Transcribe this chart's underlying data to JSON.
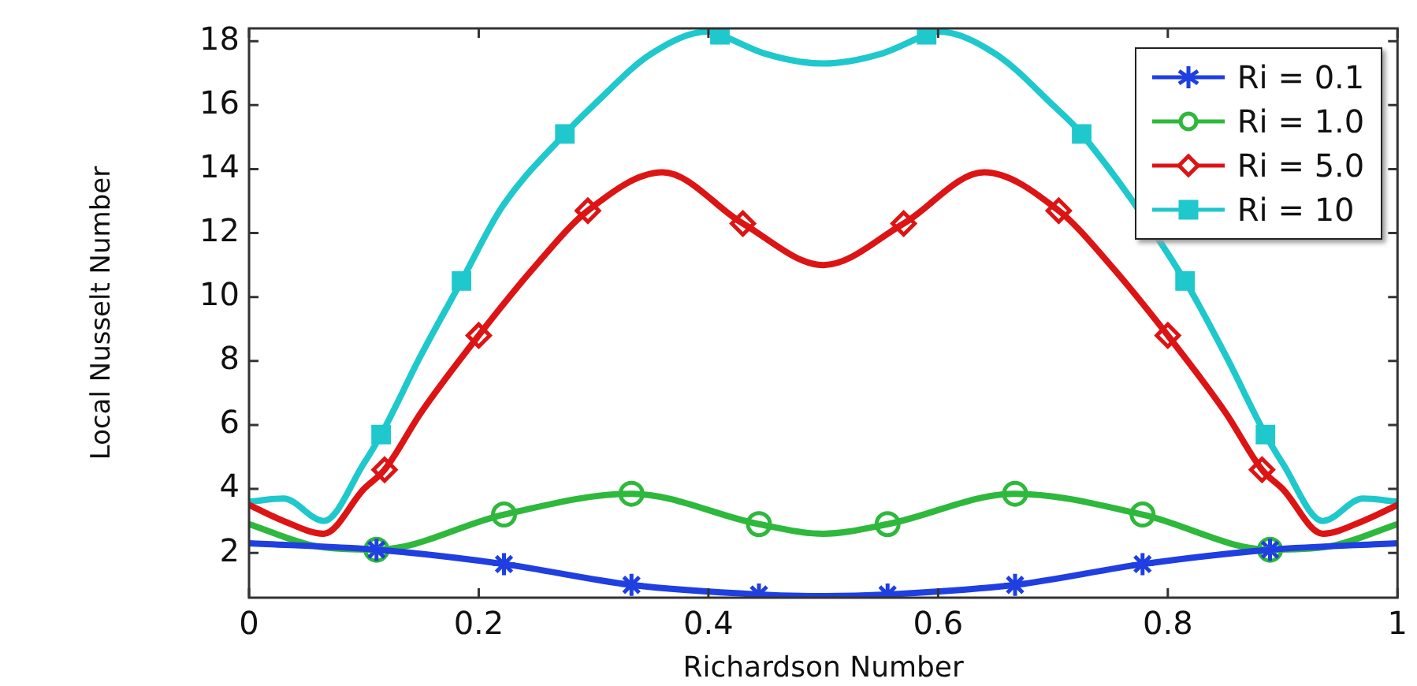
{
  "chart_data": {
    "type": "line",
    "xlabel": "Richardson Number",
    "ylabel": "Local Nusselt Number",
    "xlim": [
      0,
      1
    ],
    "ylim": [
      0.6,
      18.4
    ],
    "xticks": [
      0,
      0.2,
      0.4,
      0.6,
      0.8,
      1
    ],
    "yticks": [
      2,
      4,
      6,
      8,
      10,
      12,
      14,
      16,
      18
    ],
    "grid": false,
    "legend": "top right",
    "series": [
      {
        "name": "Ri = 0.1",
        "color": "#1f3fe0",
        "x": [
          0,
          0.111,
          0.222,
          0.333,
          0.444,
          0.5,
          0.556,
          0.667,
          0.778,
          0.889,
          1
        ],
        "values": [
          2.3,
          2.1,
          1.65,
          1.0,
          0.7,
          0.65,
          0.7,
          1.0,
          1.65,
          2.1,
          2.3
        ]
      },
      {
        "name": "Ri = 1.0",
        "color": "#2eb83c",
        "x": [
          0,
          0.06,
          0.111,
          0.222,
          0.333,
          0.444,
          0.5,
          0.556,
          0.667,
          0.778,
          0.889,
          0.94,
          1
        ],
        "values": [
          2.9,
          2.2,
          2.1,
          3.2,
          3.85,
          2.9,
          2.6,
          2.9,
          3.85,
          3.2,
          2.1,
          2.2,
          2.9
        ]
      },
      {
        "name": "Ri = 5.0",
        "color": "#dd1414",
        "x": [
          0,
          0.03,
          0.065,
          0.1,
          0.118,
          0.15,
          0.2,
          0.25,
          0.295,
          0.36,
          0.43,
          0.5,
          0.57,
          0.64,
          0.705,
          0.75,
          0.8,
          0.85,
          0.882,
          0.9,
          0.935,
          0.97,
          1
        ],
        "values": [
          3.5,
          3.0,
          2.6,
          4.0,
          4.6,
          6.4,
          8.8,
          11.0,
          12.7,
          13.9,
          12.3,
          11.0,
          12.3,
          13.9,
          12.7,
          11.0,
          8.8,
          6.4,
          4.6,
          4.0,
          2.6,
          3.0,
          3.5
        ]
      },
      {
        "name": "Ri = 10",
        "color": "#1ec8cc",
        "x": [
          0,
          0.03,
          0.065,
          0.1,
          0.115,
          0.15,
          0.185,
          0.22,
          0.275,
          0.3,
          0.35,
          0.4,
          0.41,
          0.45,
          0.5,
          0.55,
          0.59,
          0.6,
          0.65,
          0.7,
          0.725,
          0.78,
          0.815,
          0.85,
          0.885,
          0.9,
          0.935,
          0.97,
          1
        ],
        "values": [
          3.6,
          3.7,
          3.0,
          4.8,
          5.7,
          8.2,
          10.5,
          12.8,
          15.1,
          16.0,
          17.6,
          18.3,
          18.2,
          17.6,
          17.3,
          17.6,
          18.2,
          18.3,
          17.6,
          16.0,
          15.1,
          null,
          10.5,
          8.2,
          5.7,
          4.8,
          3.0,
          3.7,
          3.6
        ]
      },
      {
        "type": "scatter",
        "color": "#1f3fe0",
        "marker": "cross",
        "x": [
          0.111,
          0.222,
          0.333,
          0.444,
          0.556,
          0.667,
          0.778,
          0.889
        ],
        "values": [
          2.1,
          1.65,
          1.0,
          0.7,
          0.7,
          1.0,
          1.65,
          2.1
        ]
      },
      {
        "type": "scatter",
        "color": "#2eb83c",
        "marker": "circle",
        "x": [
          0.111,
          0.222,
          0.333,
          0.444,
          0.556,
          0.667,
          0.778,
          0.889
        ],
        "values": [
          2.1,
          3.2,
          3.85,
          2.9,
          2.9,
          3.85,
          3.2,
          2.1
        ]
      },
      {
        "type": "scatter",
        "color": "#dd1414",
        "marker": "diamond",
        "x": [
          0.118,
          0.2,
          0.295,
          0.43,
          0.57,
          0.705,
          0.8,
          0.882
        ],
        "values": [
          4.6,
          8.8,
          12.7,
          12.3,
          12.3,
          12.7,
          8.8,
          4.6
        ]
      },
      {
        "type": "scatter",
        "color": "#1ec8cc",
        "marker": "square",
        "x": [
          0.115,
          0.185,
          0.275,
          0.41,
          0.59,
          0.725,
          0.815,
          0.885
        ],
        "values": [
          5.7,
          10.5,
          15.1,
          18.2,
          18.2,
          15.1,
          10.5,
          5.7
        ]
      }
    ]
  }
}
